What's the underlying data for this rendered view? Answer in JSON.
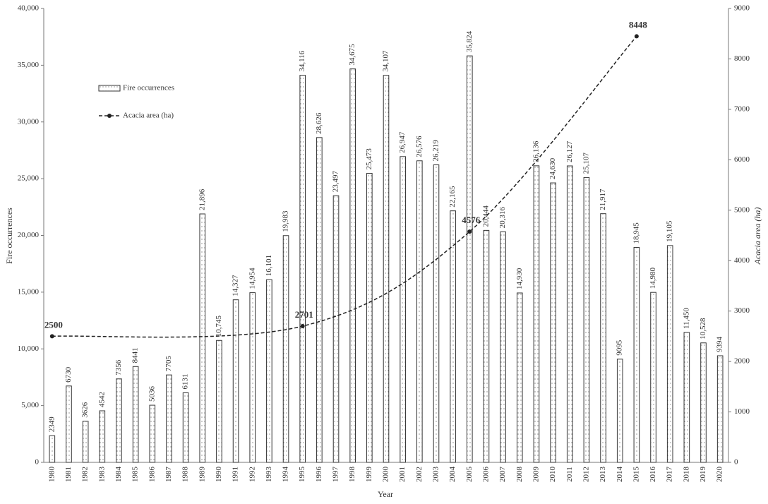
{
  "chart_data": {
    "type": "bar",
    "x_label": "Year",
    "y_label": "Fire occurrences",
    "y2_label": "Acacia area (ha)",
    "categories": [
      "1980",
      "1981",
      "1982",
      "1983",
      "1984",
      "1985",
      "1986",
      "1987",
      "1988",
      "1989",
      "1990",
      "1991",
      "1992",
      "1993",
      "1994",
      "1995",
      "1996",
      "1997",
      "1998",
      "1999",
      "2000",
      "2001",
      "2002",
      "2003",
      "2004",
      "2005",
      "2006",
      "2007",
      "2008",
      "2009",
      "2010",
      "2011",
      "2012",
      "2013",
      "2014",
      "2015",
      "2016",
      "2017",
      "2018",
      "2019",
      "2020"
    ],
    "series": [
      {
        "name": "Fire occurrences",
        "type": "bar",
        "color": "#ffffff",
        "values": [
          2349,
          6730,
          3626,
          4542,
          7356,
          8441,
          5036,
          7705,
          6131,
          21896,
          10745,
          14327,
          14954,
          16101,
          19983,
          34116,
          28626,
          23497,
          34675,
          25473,
          34107,
          26947,
          26576,
          26219,
          22165,
          35824,
          20444,
          20316,
          14930,
          26136,
          24630,
          26127,
          25107,
          21917,
          9095,
          18945,
          14980,
          19105,
          11450,
          10528,
          9394
        ],
        "value_labels": [
          "2349",
          "6730",
          "3626",
          "4542",
          "7356",
          "8441",
          "5036",
          "7705",
          "6131",
          "21,896",
          "10,745",
          "14,327",
          "14,954",
          "16,101",
          "19,983",
          "34,116",
          "28,626",
          "23,497",
          "34,675",
          "25,473",
          "34,107",
          "26,947",
          "26,576",
          "26,219",
          "22,165",
          "35,824",
          "20,444",
          "20,316",
          "14,930",
          "26,136",
          "24,630",
          "26,127",
          "25,107",
          "21,917",
          "9095",
          "18,945",
          "14,980",
          "19,105",
          "11,450",
          "10,528",
          "9394"
        ]
      },
      {
        "name": "Acacia area (ha)",
        "type": "line",
        "axis": "y2",
        "color": "#222222",
        "x": [
          1980,
          1995,
          2005,
          2015
        ],
        "values": [
          2500,
          2701,
          4576,
          8448
        ]
      }
    ],
    "ylim": [
      0,
      40000
    ],
    "yticks": [
      0,
      {
        "value": 5000,
        "label": "5,000"
      },
      {
        "value": 10000,
        "label": "10,000"
      },
      {
        "value": 15000,
        "label": "15,000"
      },
      {
        "value": 20000,
        "label": "20,000"
      },
      {
        "value": 25000,
        "label": "25,000"
      },
      {
        "value": 30000,
        "label": "30,000"
      },
      {
        "value": 35000,
        "label": "35,000"
      },
      {
        "value": 40000,
        "label": "40,000"
      }
    ],
    "y2lim": [
      0,
      9000
    ],
    "y2ticks": [
      0,
      1000,
      2000,
      3000,
      4000,
      5000,
      6000,
      7000,
      8000,
      9000
    ],
    "grid": false
  }
}
